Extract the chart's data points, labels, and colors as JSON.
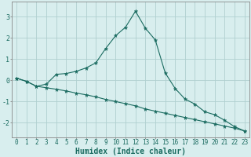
{
  "xlabel": "Humidex (Indice chaleur)",
  "background_color": "#d8eeee",
  "grid_color": "#b0d0d0",
  "line_color": "#1a6b60",
  "spine_color": "#888888",
  "xlim": [
    -0.5,
    23.5
  ],
  "ylim": [
    -2.7,
    3.7
  ],
  "yticks": [
    -2,
    -1,
    0,
    1,
    2,
    3
  ],
  "xticks": [
    0,
    1,
    2,
    3,
    4,
    5,
    6,
    7,
    8,
    9,
    10,
    11,
    12,
    13,
    14,
    15,
    16,
    17,
    18,
    19,
    20,
    21,
    22,
    23
  ],
  "line1_x": [
    0,
    1,
    2,
    3,
    4,
    5,
    6,
    7,
    8,
    9,
    10,
    11,
    12,
    13,
    14,
    15,
    16,
    17,
    18,
    19,
    20,
    21,
    22,
    23
  ],
  "line1_y": [
    0.1,
    -0.05,
    -0.28,
    -0.18,
    0.28,
    0.32,
    0.42,
    0.58,
    0.82,
    1.5,
    2.1,
    2.5,
    3.25,
    2.45,
    1.9,
    0.35,
    -0.38,
    -0.88,
    -1.12,
    -1.48,
    -1.62,
    -1.88,
    -2.18,
    -2.38
  ],
  "line2_x": [
    0,
    1,
    2,
    3,
    4,
    5,
    6,
    7,
    8,
    9,
    10,
    11,
    12,
    13,
    14,
    15,
    16,
    17,
    18,
    19,
    20,
    21,
    22,
    23
  ],
  "line2_y": [
    0.1,
    -0.05,
    -0.28,
    -0.35,
    -0.42,
    -0.5,
    -0.6,
    -0.68,
    -0.78,
    -0.9,
    -1.0,
    -1.1,
    -1.2,
    -1.35,
    -1.45,
    -1.55,
    -1.65,
    -1.75,
    -1.85,
    -1.95,
    -2.05,
    -2.15,
    -2.25,
    -2.38
  ],
  "tick_fontsize": 5.5,
  "xlabel_fontsize": 7,
  "marker_size": 3.5
}
